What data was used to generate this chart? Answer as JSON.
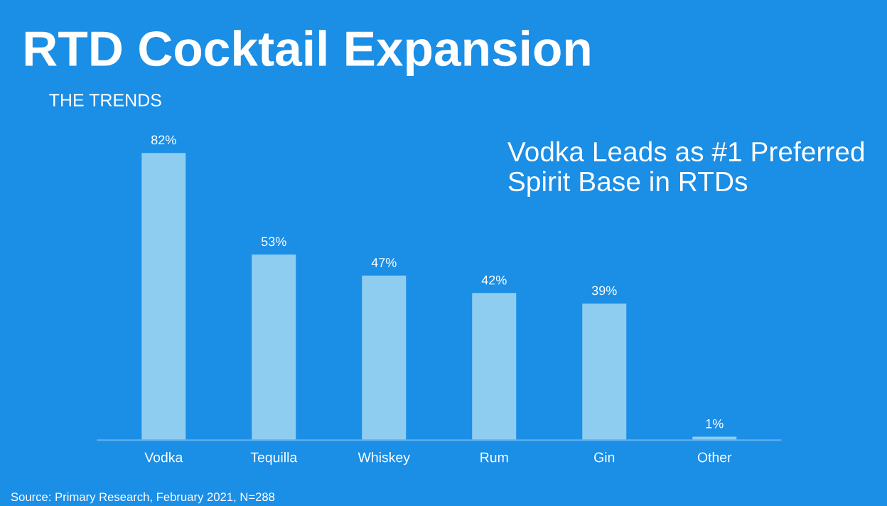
{
  "chart_data": {
    "type": "bar",
    "title": "RTD Cocktail Expansion",
    "subtitle": "THE TRENDS",
    "categories": [
      "Vodka",
      "Tequilla",
      "Whiskey",
      "Rum",
      "Gin",
      "Other"
    ],
    "values": [
      82,
      53,
      47,
      42,
      39,
      1
    ],
    "value_labels": [
      "82%",
      "53%",
      "47%",
      "42%",
      "39%",
      "1%"
    ],
    "color": "#8fcdf0",
    "grid": false,
    "legend": false,
    "annotations": [
      "Vodka Leads as #1 Preferred\nSpirit Base in RTDs",
      "Source: Primary Research, February 2021, N=288"
    ]
  }
}
